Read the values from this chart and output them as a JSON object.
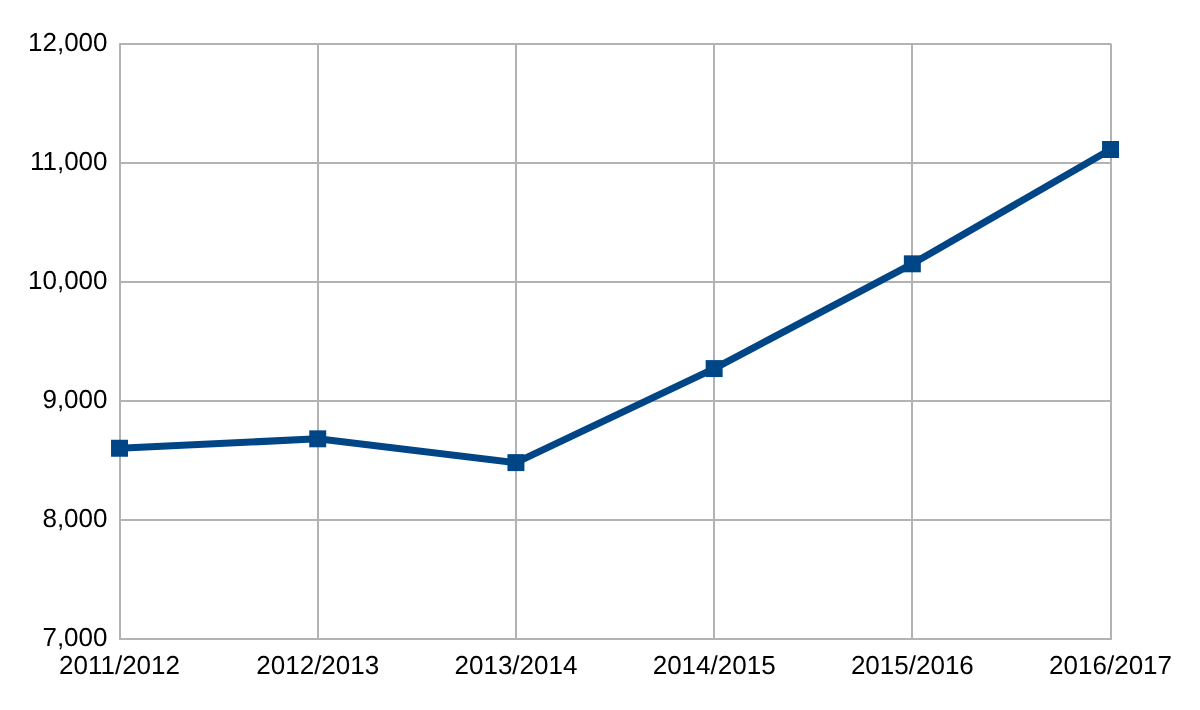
{
  "chart_data": {
    "type": "line",
    "categories": [
      "2011/2012",
      "2012/2013",
      "2013/2014",
      "2014/2015",
      "2015/2016",
      "2016/2017"
    ],
    "series": [
      {
        "color": "#004586",
        "values": [
          8600,
          8680,
          8480,
          9270,
          10150,
          11110
        ]
      }
    ],
    "ylim": [
      7000,
      12000
    ],
    "yticks": [
      {
        "value": 7000,
        "label": "7,000"
      },
      {
        "value": 8000,
        "label": "8,000"
      },
      {
        "value": 9000,
        "label": "9,000"
      },
      {
        "value": 10000,
        "label": "10,000"
      },
      {
        "value": 11000,
        "label": "11,000"
      },
      {
        "value": 12000,
        "label": "12,000"
      }
    ],
    "grid": true,
    "marker": "square",
    "line_style": "solid",
    "legend": false
  }
}
